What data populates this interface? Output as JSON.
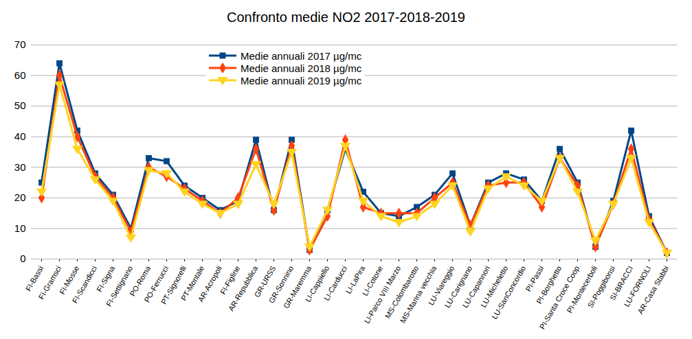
{
  "chart_data": {
    "type": "line",
    "title": "Confronto medie NO2 2017-2018-2019",
    "categories": [
      "FI-Bassi",
      "FI-Gramsci",
      "FI-Mosse",
      "FI-Scandicci",
      "FI-Signa",
      "FI-Settignano",
      "PO-Roma",
      "PO-Ferrucci",
      "PT-Signorelli",
      "PT-Montale",
      "AR-Acropoli",
      "FI-Figline",
      "AR-Repubblica",
      "GR-URSS",
      "GR-Sonnino",
      "GR-Maremma",
      "LI-Cappiello",
      "LI-Carducci",
      "LI-LaPira",
      "LI-Cotone",
      "LI-Parco VIII Marzo",
      "MS-Colombarotto",
      "MS-Marina vecchia",
      "LU-Viareggio",
      "LU-Carignano",
      "LU-Capannori",
      "LU-Micheletto",
      "LU-SanConcordio",
      "PI-Passi",
      "PI-Borghetto",
      "PI-Santa Croce Coop",
      "PI-Montecerboli",
      "SI-Poggibonsi",
      "SI-BRACCI",
      "LU-FORNOLI",
      "AR-Casa Stabbi"
    ],
    "series": [
      {
        "name": "Medie annuali 2017 µg/mc",
        "color": "#004586",
        "marker": "square",
        "values": [
          25,
          64,
          42,
          28,
          21,
          10,
          33,
          32,
          24,
          20,
          16,
          19,
          39,
          16,
          39,
          3,
          16,
          36,
          22,
          15,
          14,
          17,
          21,
          28,
          11,
          25,
          28,
          26,
          19,
          36,
          25,
          4,
          19,
          42,
          14,
          2
        ]
      },
      {
        "name": "Medie annuali 2018 µg/mc",
        "color": "#ff420e",
        "marker": "diamond",
        "values": [
          20,
          60,
          40,
          27,
          20,
          9,
          30,
          27,
          23,
          19,
          15,
          20,
          36,
          16,
          37,
          3,
          14,
          39,
          17,
          15,
          15,
          15,
          20,
          25,
          11,
          24,
          25,
          25,
          17,
          33,
          24,
          4,
          18,
          36,
          13,
          2
        ]
      },
      {
        "name": "Medie annuali 2019 µg/mc",
        "color": "#ffd320",
        "marker": "triangle-down",
        "values": [
          22,
          57,
          36,
          26,
          19,
          7,
          29,
          28,
          22,
          18,
          15,
          18,
          31,
          18,
          35,
          4,
          16,
          37,
          19,
          14,
          12,
          14,
          18,
          24,
          9,
          23,
          27,
          24,
          19,
          33,
          22,
          6,
          18,
          33,
          12,
          2
        ]
      }
    ],
    "ylim": [
      0,
      70
    ],
    "yticks": [
      0,
      10,
      20,
      30,
      40,
      50,
      60,
      70
    ],
    "grid": true,
    "legend": "top"
  }
}
